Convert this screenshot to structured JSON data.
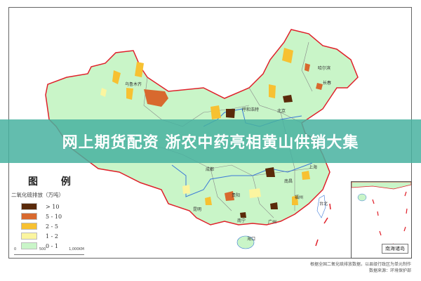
{
  "legend": {
    "title": "图 例",
    "subtitle": "二氧化硫排放（万吨）",
    "items": [
      {
        "label": "> 10",
        "color": "#5a2a0a"
      },
      {
        "label": "5 - 10",
        "color": "#d8692e"
      },
      {
        "label": "2 - 5",
        "color": "#f7c132"
      },
      {
        "label": "1 - 2",
        "color": "#fbf5a0"
      },
      {
        "label": "0 - 1",
        "color": "#c9f5c8"
      }
    ]
  },
  "scale": {
    "labels": [
      "0",
      "500",
      "1,000KM"
    ]
  },
  "cities": [
    "乌鲁木齐",
    "呼和浩特",
    "哈尔滨",
    "长春",
    "北京",
    "成都",
    "贵阳",
    "昆明",
    "南宁",
    "广州",
    "福州",
    "南昌",
    "上海",
    "海口",
    "台北"
  ],
  "inset": {
    "label": "南海诸岛"
  },
  "footer": {
    "line1": "根据全国二氧化硫排放数据，以县级行政区为单元制作",
    "line2": "数据来源：环境保护部"
  },
  "banner": {
    "text": "网上期货配资 浙农中药亮相黄山供销大集"
  },
  "colors": {
    "border": "#e0202a",
    "river": "#3a78d8",
    "province": "#888888",
    "banner": "#48b2a0"
  }
}
